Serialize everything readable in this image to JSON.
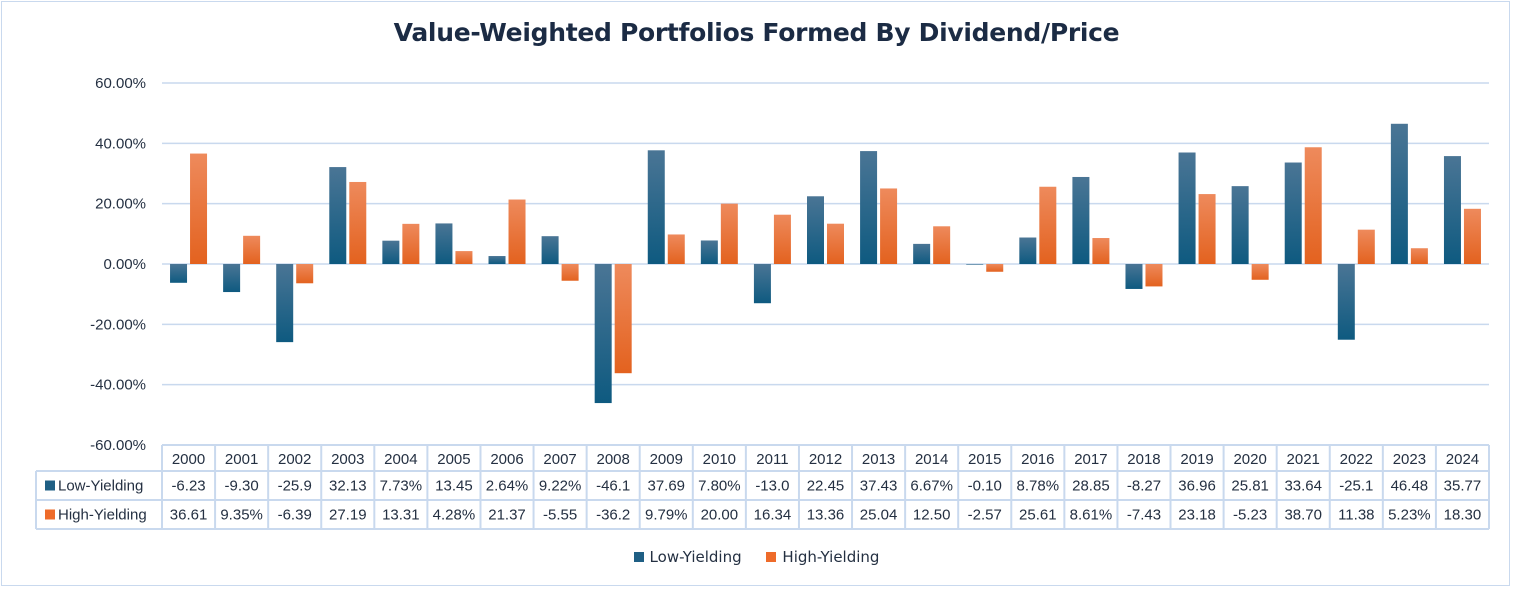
{
  "chart_data": {
    "type": "bar",
    "title": "Value-Weighted Portfolios Formed By Dividend/Price",
    "xlabel": "",
    "ylabel": "",
    "ylim": [
      -60,
      60
    ],
    "yticks": [
      60,
      40,
      20,
      0,
      -20,
      -40,
      -60
    ],
    "ytick_labels": [
      "60.00%",
      "40.00%",
      "20.00%",
      "0.00%",
      "-20.00%",
      "-40.00%",
      "-60.00%"
    ],
    "grid": true,
    "legend_position": "bottom",
    "data_table": true,
    "categories": [
      "2000",
      "2001",
      "2002",
      "2003",
      "2004",
      "2005",
      "2006",
      "2007",
      "2008",
      "2009",
      "2010",
      "2011",
      "2012",
      "2013",
      "2014",
      "2015",
      "2016",
      "2017",
      "2018",
      "2019",
      "2020",
      "2021",
      "2022",
      "2023",
      "2024"
    ],
    "series": [
      {
        "name": "Low-Yielding",
        "color": "#1f5f84",
        "color_light": "#4a7595",
        "color_dark": "#0e5a80",
        "values": [
          -6.23,
          -9.3,
          -25.9,
          32.13,
          7.73,
          13.45,
          2.64,
          9.22,
          -46.1,
          37.69,
          7.8,
          -13.0,
          22.45,
          37.43,
          6.67,
          -0.1,
          8.78,
          28.85,
          -8.27,
          36.96,
          25.81,
          33.64,
          -25.1,
          46.48,
          35.77
        ],
        "table_labels": [
          "-6.23",
          "-9.30",
          "-25.9",
          "32.13",
          "7.73%",
          "13.45",
          "2.64%",
          "9.22%",
          "-46.1",
          "37.69",
          "7.80%",
          "-13.0",
          "22.45",
          "37.43",
          "6.67%",
          "-0.10",
          "8.78%",
          "28.85",
          "-8.27",
          "36.96",
          "25.81",
          "33.64",
          "-25.1",
          "46.48",
          "35.77"
        ]
      },
      {
        "name": "High-Yielding",
        "color": "#ee6b2a",
        "color_light": "#ee8a5c",
        "color_dark": "#e3621f",
        "values": [
          36.61,
          9.35,
          -6.39,
          27.19,
          13.31,
          4.28,
          21.37,
          -5.55,
          -36.2,
          9.79,
          20.0,
          16.34,
          13.36,
          25.04,
          12.5,
          -2.57,
          25.61,
          8.61,
          -7.43,
          23.18,
          -5.23,
          38.7,
          11.38,
          5.23,
          18.3
        ],
        "table_labels": [
          "36.61",
          "9.35%",
          "-6.39",
          "27.19",
          "13.31",
          "4.28%",
          "21.37",
          "-5.55",
          "-36.2",
          "9.79%",
          "20.00",
          "16.34",
          "13.36",
          "25.04",
          "12.50",
          "-2.57",
          "25.61",
          "8.61%",
          "-7.43",
          "23.18",
          "-5.23",
          "38.70",
          "11.38",
          "5.23%",
          "18.30"
        ]
      }
    ]
  },
  "legend": {
    "items": [
      {
        "label": "Low-Yielding",
        "color": "#1f5f84"
      },
      {
        "label": "High-Yielding",
        "color": "#ee6b2a"
      }
    ]
  },
  "colors": {
    "grid": "#c9d9ee",
    "text": "#243042",
    "title": "#1b2b44"
  }
}
